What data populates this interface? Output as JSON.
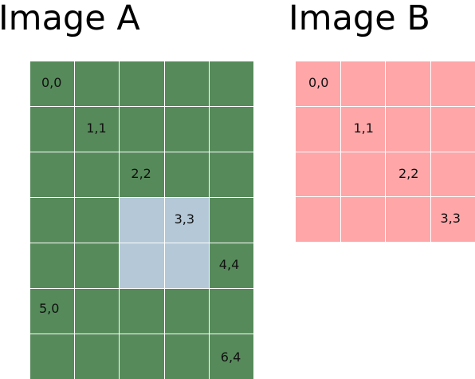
{
  "titles": {
    "a": "Image A",
    "b": "Image B"
  },
  "colors": {
    "a_cell": "#568a5a",
    "a_highlight": "#b4c8d8",
    "b_cell": "#fea6a8",
    "grid_line": "#ffffff"
  },
  "grid_a": {
    "rows": 7,
    "cols": 5,
    "highlighted": [
      [
        3,
        2
      ],
      [
        3,
        3
      ],
      [
        4,
        2
      ],
      [
        4,
        3
      ]
    ],
    "labels": [
      {
        "row": 0,
        "col": 0,
        "text": "0,0"
      },
      {
        "row": 1,
        "col": 1,
        "text": "1,1"
      },
      {
        "row": 2,
        "col": 2,
        "text": "2,2"
      },
      {
        "row": 3,
        "col": 3,
        "text": "3,3"
      },
      {
        "row": 4,
        "col": 4,
        "text": "4,4"
      },
      {
        "row": 5,
        "col": 0,
        "text": "5,0"
      },
      {
        "row": 6,
        "col": 4,
        "text": "6,4"
      }
    ]
  },
  "grid_b": {
    "rows": 4,
    "cols": 4,
    "highlighted": [],
    "labels": [
      {
        "row": 0,
        "col": 0,
        "text": "0,0"
      },
      {
        "row": 1,
        "col": 1,
        "text": "1,1"
      },
      {
        "row": 2,
        "col": 2,
        "text": "2,2"
      },
      {
        "row": 3,
        "col": 3,
        "text": "3,3"
      }
    ]
  }
}
